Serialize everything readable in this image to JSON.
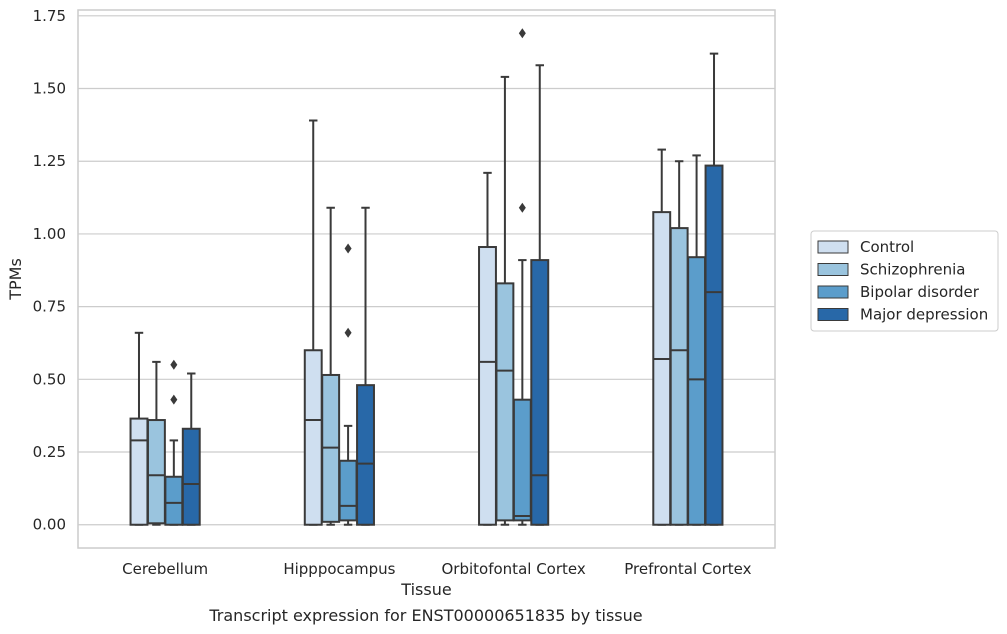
{
  "caption": "Transcript expression for ENST00000651835 by tissue",
  "chart_data": {
    "type": "boxplot",
    "xlabel": "Tissue",
    "ylabel": "TPMs",
    "ylim": [
      -0.08,
      1.77
    ],
    "yticks": [
      "0.00",
      "0.25",
      "0.50",
      "0.75",
      "1.00",
      "1.25",
      "1.50",
      "1.75"
    ],
    "ytick_values": [
      0,
      0.25,
      0.5,
      0.75,
      1.0,
      1.25,
      1.5,
      1.75
    ],
    "grid": "horizontal",
    "legend_position": "right",
    "categories": [
      "Cerebellum",
      "Hipppocampus",
      "Orbitofontal Cortex",
      "Prefrontal Cortex"
    ],
    "series": [
      {
        "name": "Control",
        "color": "#cfdff0",
        "boxes": [
          {
            "min": 0.0,
            "q1": 0.0,
            "median": 0.29,
            "q3": 0.365,
            "max": 0.66,
            "outliers": []
          },
          {
            "min": 0.0,
            "q1": 0.0,
            "median": 0.36,
            "q3": 0.6,
            "max": 1.39,
            "outliers": []
          },
          {
            "min": 0.0,
            "q1": 0.0,
            "median": 0.56,
            "q3": 0.955,
            "max": 1.21,
            "outliers": []
          },
          {
            "min": 0.0,
            "q1": 0.0,
            "median": 0.57,
            "q3": 1.075,
            "max": 1.29,
            "outliers": []
          }
        ]
      },
      {
        "name": "Schizophrenia",
        "color": "#9ac4de",
        "boxes": [
          {
            "min": 0.0,
            "q1": 0.005,
            "median": 0.17,
            "q3": 0.36,
            "max": 0.56,
            "outliers": []
          },
          {
            "min": 0.0,
            "q1": 0.01,
            "median": 0.265,
            "q3": 0.515,
            "max": 1.09,
            "outliers": []
          },
          {
            "min": 0.0,
            "q1": 0.015,
            "median": 0.53,
            "q3": 0.83,
            "max": 1.54,
            "outliers": []
          },
          {
            "min": 0.0,
            "q1": 0.0,
            "median": 0.6,
            "q3": 1.02,
            "max": 1.25,
            "outliers": []
          }
        ]
      },
      {
        "name": "Bipolar disorder",
        "color": "#5b9dcb",
        "boxes": [
          {
            "min": 0.0,
            "q1": 0.0,
            "median": 0.075,
            "q3": 0.165,
            "max": 0.29,
            "outliers": [
              0.43,
              0.55
            ]
          },
          {
            "min": 0.0,
            "q1": 0.015,
            "median": 0.065,
            "q3": 0.22,
            "max": 0.34,
            "outliers": [
              0.66,
              0.95
            ]
          },
          {
            "min": 0.0,
            "q1": 0.015,
            "median": 0.03,
            "q3": 0.43,
            "max": 0.91,
            "outliers": [
              1.09,
              1.69
            ]
          },
          {
            "min": 0.0,
            "q1": 0.0,
            "median": 0.5,
            "q3": 0.92,
            "max": 1.27,
            "outliers": []
          }
        ]
      },
      {
        "name": "Major depression",
        "color": "#2868a8",
        "boxes": [
          {
            "min": 0.0,
            "q1": 0.0,
            "median": 0.14,
            "q3": 0.33,
            "max": 0.52,
            "outliers": []
          },
          {
            "min": 0.0,
            "q1": 0.0,
            "median": 0.21,
            "q3": 0.48,
            "max": 1.09,
            "outliers": []
          },
          {
            "min": 0.0,
            "q1": 0.0,
            "median": 0.17,
            "q3": 0.91,
            "max": 1.58,
            "outliers": []
          },
          {
            "min": 0.0,
            "q1": 0.0,
            "median": 0.8,
            "q3": 1.235,
            "max": 1.62,
            "outliers": []
          }
        ]
      }
    ]
  }
}
